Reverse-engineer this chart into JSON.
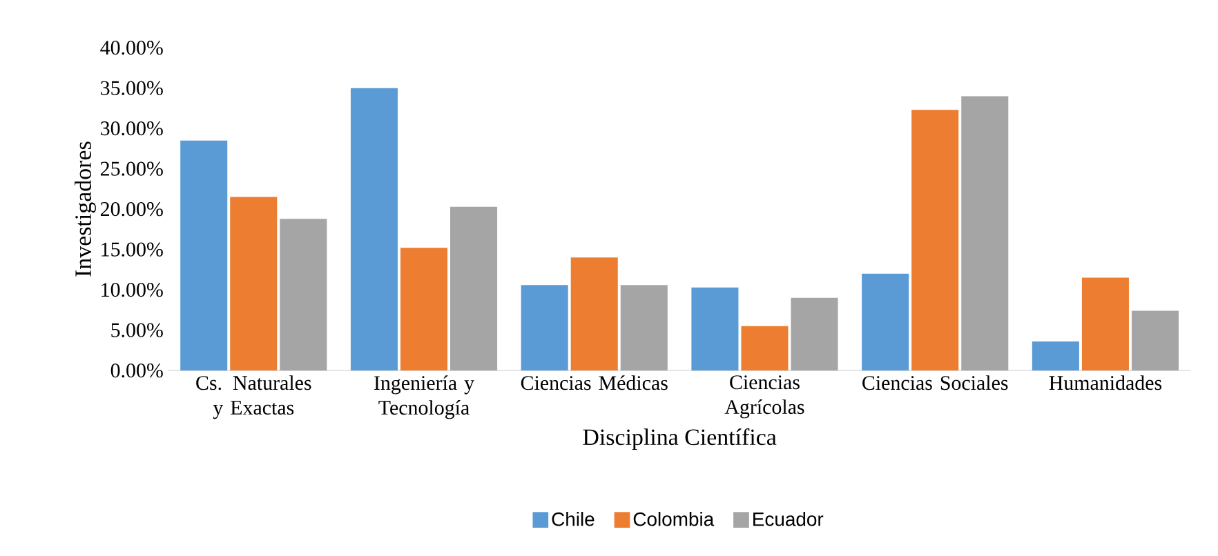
{
  "chart_data": {
    "type": "bar",
    "xlabel": "Disciplina Científica",
    "ylabel": "Investigadores",
    "categories": [
      "Cs. Naturales y Exactas",
      "Ingeniería y Tecnología",
      "Ciencias Médicas",
      "Ciencias Agrícolas",
      "Ciencias Sociales",
      "Humanidades"
    ],
    "series": [
      {
        "name": "Chile",
        "color": "#5b9bd5",
        "values": [
          28.5,
          35.0,
          10.6,
          10.3,
          12.0,
          3.6
        ]
      },
      {
        "name": "Colombia",
        "color": "#ed7d31",
        "values": [
          21.5,
          15.2,
          14.0,
          5.5,
          32.3,
          11.5
        ]
      },
      {
        "name": "Ecuador",
        "color": "#a5a5a5",
        "values": [
          18.8,
          20.3,
          10.6,
          9.0,
          34.0,
          7.4
        ]
      }
    ],
    "ylim": [
      0,
      40
    ],
    "yticks": [
      {
        "value": 0,
        "label": "0.00%"
      },
      {
        "value": 5,
        "label": "5.00%"
      },
      {
        "value": 10,
        "label": "10.00%"
      },
      {
        "value": 15,
        "label": "15.00%"
      },
      {
        "value": 20,
        "label": "20.00%"
      },
      {
        "value": 25,
        "label": "25.00%"
      },
      {
        "value": 30,
        "label": "30.00%"
      },
      {
        "value": 35,
        "label": "35.00%"
      },
      {
        "value": 40,
        "label": "40.00%"
      }
    ],
    "legend": "bottom"
  }
}
